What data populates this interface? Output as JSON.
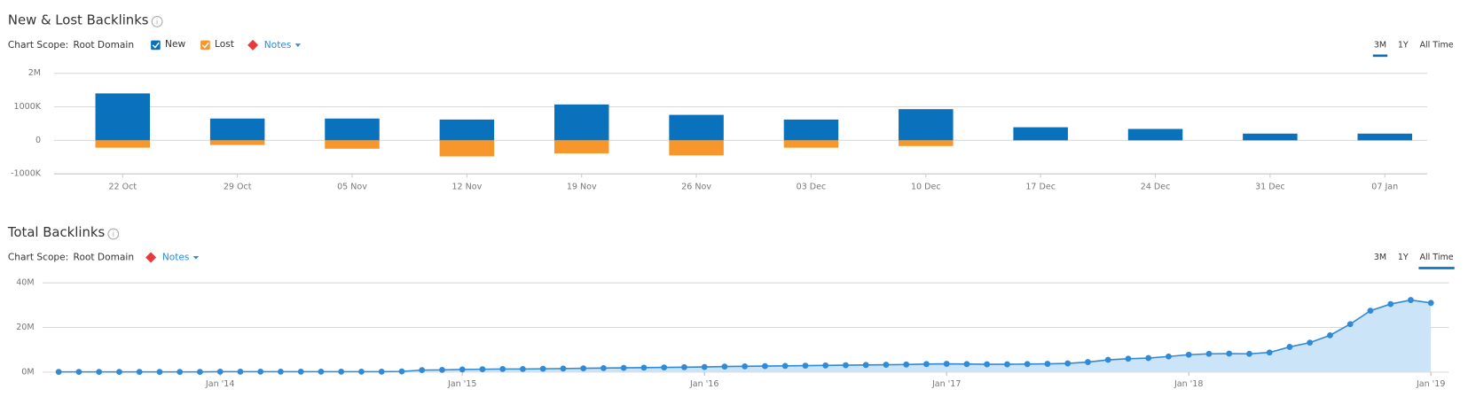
{
  "chart_data": [
    {
      "type": "bar",
      "stacked": true,
      "title": "New & Lost Backlinks",
      "scope_label": "Chart Scope:",
      "scope": "Root Domain",
      "notes": "Notes",
      "periods": [
        "3M",
        "1Y",
        "All Time"
      ],
      "selected_period": "3M",
      "categories": [
        "22 Oct",
        "29 Oct",
        "05 Nov",
        "12 Nov",
        "19 Nov",
        "26 Nov",
        "03 Dec",
        "10 Dec",
        "17 Dec",
        "24 Dec",
        "31 Dec",
        "07 Jan"
      ],
      "series": [
        {
          "name": "New",
          "color": "#0a71bd",
          "values": [
            1400000,
            650000,
            650000,
            620000,
            1070000,
            760000,
            620000,
            930000,
            390000,
            340000,
            200000,
            200000
          ]
        },
        {
          "name": "Lost",
          "color": "#f7962a",
          "values": [
            -220000,
            -140000,
            -250000,
            -480000,
            -390000,
            -450000,
            -220000,
            -170000,
            0,
            0,
            0,
            0
          ]
        }
      ],
      "ylim": [
        -1000000,
        2000000
      ],
      "yticks": [
        {
          "value": -1000000,
          "label": "-1000K"
        },
        0,
        {
          "value": 1000000,
          "label": "1000K"
        },
        {
          "value": 2000000,
          "label": "2M"
        }
      ],
      "grid": true
    },
    {
      "type": "area",
      "title": "Total Backlinks",
      "scope_label": "Chart Scope:",
      "scope": "Root Domain",
      "notes": "Notes",
      "periods": [
        "3M",
        "1Y",
        "All Time"
      ],
      "selected_period": "All Time",
      "x": [
        "2013-05",
        "2013-06",
        "2013-07",
        "2013-08",
        "2013-09",
        "2013-10",
        "2013-11",
        "2013-12",
        "2014-01",
        "2014-02",
        "2014-03",
        "2014-04",
        "2014-05",
        "2014-06",
        "2014-07",
        "2014-08",
        "2014-09",
        "2014-10",
        "2014-11",
        "2014-12",
        "2015-01",
        "2015-02",
        "2015-03",
        "2015-04",
        "2015-05",
        "2015-06",
        "2015-07",
        "2015-08",
        "2015-09",
        "2015-10",
        "2015-11",
        "2015-12",
        "2016-01",
        "2016-02",
        "2016-03",
        "2016-04",
        "2016-05",
        "2016-06",
        "2016-07",
        "2016-08",
        "2016-09",
        "2016-10",
        "2016-11",
        "2016-12",
        "2017-01",
        "2017-02",
        "2017-03",
        "2017-04",
        "2017-05",
        "2017-06",
        "2017-07",
        "2017-08",
        "2017-09",
        "2017-10",
        "2017-11",
        "2017-12",
        "2018-01",
        "2018-02",
        "2018-03",
        "2018-04",
        "2018-05",
        "2018-06",
        "2018-07",
        "2018-08",
        "2018-09",
        "2018-10",
        "2018-11",
        "2018-12",
        "2019-01"
      ],
      "values": [
        100000,
        100000,
        100000,
        100000,
        100000,
        100000,
        100000,
        100000,
        200000,
        200000,
        200000,
        200000,
        200000,
        200000,
        200000,
        200000,
        200000,
        300000,
        900000,
        1000000,
        1200000,
        1300000,
        1400000,
        1400000,
        1500000,
        1600000,
        1700000,
        1800000,
        1900000,
        2000000,
        2100000,
        2200000,
        2300000,
        2500000,
        2600000,
        2700000,
        2800000,
        2900000,
        3000000,
        3100000,
        3200000,
        3300000,
        3400000,
        3600000,
        3700000,
        3600000,
        3500000,
        3500000,
        3600000,
        3700000,
        3900000,
        4500000,
        5500000,
        6000000,
        6300000,
        7000000,
        7800000,
        8200000,
        8300000,
        8200000,
        8800000,
        11300000,
        13200000,
        16500000,
        21500000,
        27500000,
        30500000,
        32300000,
        31000000
      ],
      "color": "#2f8ad8",
      "fill_color": "#cce4f7",
      "xlim": [
        "2013-05",
        "2019-01"
      ],
      "xticks": [
        {
          "value": "2014-01",
          "label": "Jan '14"
        },
        {
          "value": "2015-01",
          "label": "Jan '15"
        },
        {
          "value": "2016-01",
          "label": "Jan '16"
        },
        {
          "value": "2017-01",
          "label": "Jan '17"
        },
        {
          "value": "2018-01",
          "label": "Jan '18"
        },
        {
          "value": "2019-01",
          "label": "Jan '19"
        }
      ],
      "ylim": [
        0,
        40000000
      ],
      "yticks": [
        {
          "value": 0,
          "label": "0M"
        },
        {
          "value": 20000000,
          "label": "20M"
        },
        {
          "value": 40000000,
          "label": "40M"
        }
      ],
      "grid": true
    }
  ]
}
